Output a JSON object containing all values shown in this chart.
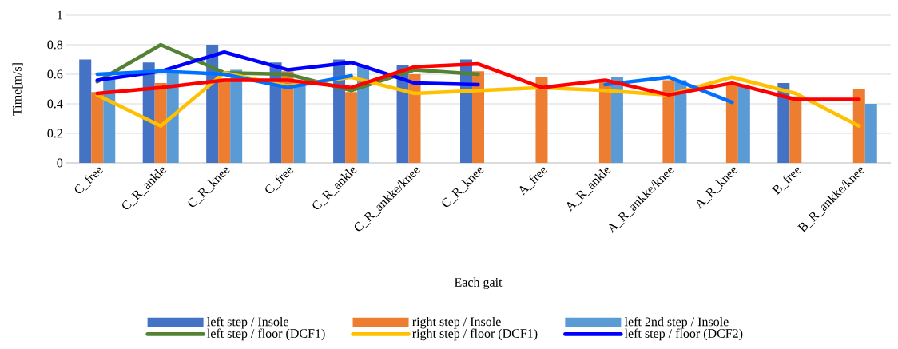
{
  "chart_data": {
    "type": "bar",
    "xlabel": "Each gait",
    "ylabel": "Time[m/s]",
    "categories": [
      "C_free",
      "C_R_ankle",
      "C_R_knee",
      "C_free",
      "C_R_ankle",
      "C_R_ankke/knee",
      "C_R_knee",
      "A_free",
      "A_R_ankle",
      "A_R_ankke/knee",
      "A_R_knee",
      "B_free",
      "B_R_ankke/knee"
    ],
    "series": [
      {
        "name": "left  step / Insole",
        "color": "#4472c4",
        "values": [
          0.7,
          0.68,
          0.8,
          0.68,
          0.7,
          0.66,
          0.7,
          null,
          null,
          null,
          null,
          0.54,
          null
        ]
      },
      {
        "name": "right step / Insole",
        "color": "#ed7d31",
        "values": [
          0.48,
          0.54,
          0.57,
          0.62,
          0.48,
          0.6,
          0.62,
          0.58,
          0.55,
          0.56,
          0.54,
          0.45,
          0.5
        ]
      },
      {
        "name": "left  2nd step / Insole",
        "color": "#5b9bd5",
        "values": [
          0.57,
          0.62,
          0.63,
          0.55,
          0.66,
          null,
          null,
          null,
          0.58,
          0.56,
          0.52,
          null,
          0.4
        ]
      },
      {
        "name": "left  step / floor (DCF1)",
        "type": "line",
        "color": "#548235",
        "values": [
          0.55,
          0.8,
          0.61,
          0.6,
          0.49,
          0.63,
          0.6,
          null,
          null,
          null,
          null,
          null,
          null
        ]
      },
      {
        "name": "right step / floor (DCF1)",
        "type": "line",
        "color": "#ffc000",
        "values": [
          0.46,
          0.25,
          0.61,
          0.52,
          0.58,
          0.47,
          0.49,
          0.51,
          0.49,
          0.46,
          0.58,
          0.47,
          0.25
        ]
      },
      {
        "name": "left  step / floor (DCF2)",
        "type": "line",
        "color": "#0000ff",
        "values": [
          0.56,
          0.62,
          0.75,
          0.63,
          0.68,
          0.54,
          0.53,
          null,
          null,
          null,
          null,
          null,
          null
        ]
      },
      {
        "type": "line",
        "color": "#0070ff",
        "values": [
          0.6,
          0.62,
          0.6,
          0.51,
          0.59,
          null,
          null,
          null,
          0.53,
          0.58,
          0.41,
          null,
          null
        ]
      },
      {
        "type": "line",
        "color": "#ff0000",
        "values": [
          0.47,
          0.51,
          0.56,
          0.56,
          0.51,
          0.65,
          0.67,
          0.51,
          0.56,
          0.46,
          0.54,
          0.43,
          0.43
        ]
      }
    ],
    "ylim": [
      0,
      1
    ],
    "yticks": [
      0,
      0.2,
      0.4,
      0.6,
      0.8,
      1
    ],
    "grid": "y",
    "legend": "bottom"
  }
}
